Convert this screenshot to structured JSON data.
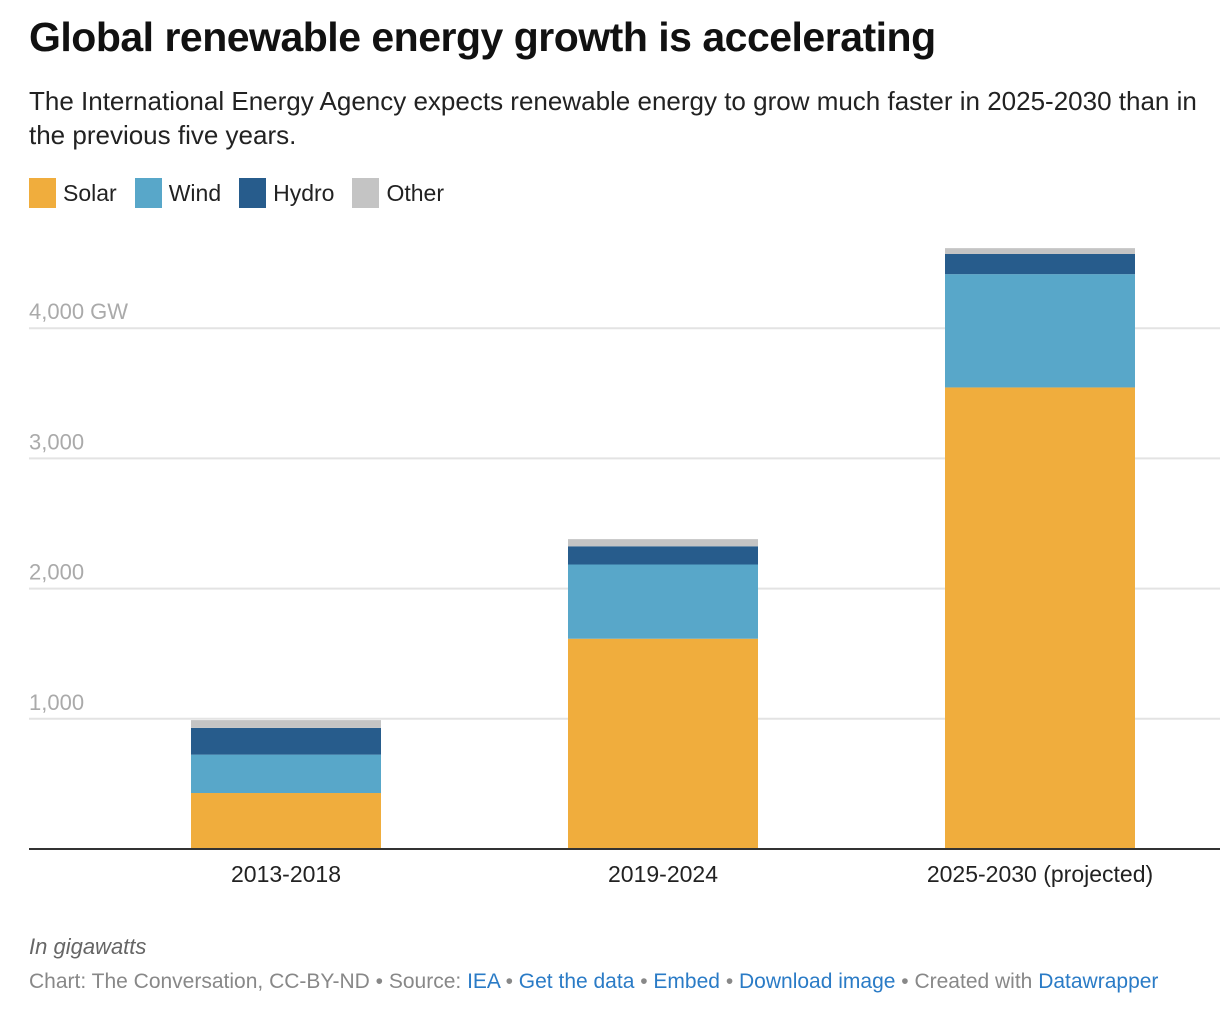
{
  "header": {
    "title": "Global renewable energy growth is accelerating",
    "subtitle": "The International Energy Agency expects renewable energy to grow much faster in 2025-2030 than in the previous five years."
  },
  "chart_data": {
    "type": "bar",
    "stacked": true,
    "title": "Global renewable energy growth is accelerating",
    "categories": [
      "2013-2018",
      "2019-2024",
      "2025-2030 (projected)"
    ],
    "series": [
      {
        "name": "Solar",
        "color": "#f0ad3d",
        "values": [
          430,
          1615,
          3545
        ]
      },
      {
        "name": "Wind",
        "color": "#58a7c9",
        "values": [
          295,
          570,
          870
        ]
      },
      {
        "name": "Hydro",
        "color": "#275c8c",
        "values": [
          205,
          140,
          155
        ]
      },
      {
        "name": "Other",
        "color": "#c4c4c4",
        "values": [
          60,
          55,
          45
        ]
      }
    ],
    "yticks": [
      1000,
      2000,
      3000,
      4000
    ],
    "ytick_labels": [
      "1,000",
      "2,000",
      "3,000",
      "4,000 GW"
    ],
    "ylim": [
      0,
      4800
    ],
    "ylabel": "",
    "xlabel": "",
    "grid": true,
    "legend": "top-left"
  },
  "footer": {
    "note": "In gigawatts",
    "chart_credit": "Chart: The Conversation, CC-BY-ND",
    "sep": " • ",
    "source_label": "Source: ",
    "source": "IEA",
    "get_data": "Get the data",
    "embed": "Embed",
    "download": "Download image",
    "created_with": "Created with ",
    "datawrapper": "Datawrapper"
  }
}
